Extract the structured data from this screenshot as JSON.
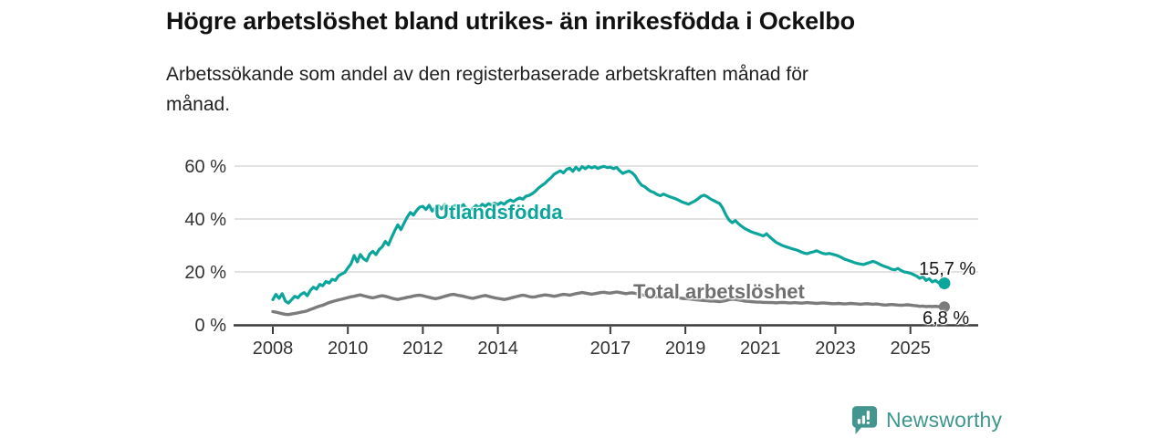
{
  "header": {
    "title": "Högre arbetslöshet bland utrikes- än inrikesfödda i Ockelbo",
    "subtitle_line1": "Arbetssökande som andel av den registerbaserade arbetskraften månad för",
    "subtitle_line2": "månad."
  },
  "branding": {
    "name": "Newsworthy",
    "icon": "speech-bubble-bar-chart",
    "color": "#43968f"
  },
  "chart_data": {
    "type": "line",
    "title": "Högre arbetslöshet bland utrikes- än inrikesfödda i Ockelbo",
    "subtitle": "Arbetssökande som andel av den registerbaserade arbetskraften månad för månad.",
    "x_unit": "month",
    "x_start": "2008-01",
    "x_end": "2025-11",
    "xlabel": "",
    "ylabel": "",
    "ylim": [
      0,
      62
    ],
    "grid": "horizontal",
    "legend_position": "inline-labels",
    "y_tick_values": [
      0,
      20,
      40,
      60
    ],
    "y_tick_labels": [
      "0 %",
      "20 %",
      "40 %",
      "60 %"
    ],
    "x_tick_years": [
      2008,
      2010,
      2012,
      2014,
      2017,
      2019,
      2021,
      2023,
      2025
    ],
    "colors": {
      "grid": "#d9d9d9",
      "axis": "#3b3b3b",
      "tick_text": "#333333"
    },
    "series": [
      {
        "name": "Utlandsfödda",
        "color": "#0ba59c",
        "line_width": 3.2,
        "end_label": "15,7 %",
        "end_value": 15.7,
        "values": [
          9.5,
          11.5,
          10,
          11.8,
          9,
          8.2,
          9.5,
          10.8,
          10.2,
          11.5,
          12.2,
          11,
          13,
          14.2,
          13.5,
          15.3,
          14.8,
          16.4,
          15.8,
          17.2,
          16.8,
          18.5,
          19.2,
          19.8,
          21.5,
          23,
          26.2,
          23.8,
          26.6,
          25,
          24.2,
          26.8,
          27.8,
          26.5,
          28.4,
          29.5,
          31.5,
          30.2,
          33,
          35.6,
          37.8,
          36,
          38.5,
          40.7,
          42.5,
          41.5,
          43.2,
          44.5,
          44.8,
          43.6,
          45.2,
          43,
          44.1,
          45,
          43.8,
          45.5,
          44.6,
          43.8,
          44.9,
          45.3,
          44.6,
          45.4,
          43.8,
          42.9,
          44,
          45.1,
          44.3,
          45.6,
          44.8,
          45.8,
          45.2,
          46,
          45.4,
          46.2,
          45.6,
          46.6,
          47.2,
          46.6,
          47.4,
          48,
          47.5,
          48.6,
          48.9,
          49.6,
          50.5,
          51.7,
          52.6,
          53.4,
          54.6,
          55.6,
          56.9,
          57.6,
          58.2,
          57.4,
          58.8,
          59.2,
          58,
          59.6,
          58.4,
          59.8,
          59,
          59.9,
          59.3,
          59.8,
          59.1,
          59.6,
          59.9,
          59.4,
          59.6,
          59,
          59.5,
          58.2,
          57.2,
          57.8,
          58.1,
          57.4,
          56.2,
          54.2,
          52.8,
          52.2,
          51.2,
          50.4,
          50,
          49.2,
          48.8,
          49.4,
          48.9,
          48.4,
          48,
          47.6,
          47,
          46.4,
          46,
          45.6,
          46.2,
          46.8,
          47.6,
          48.6,
          49,
          48.4,
          47.6,
          47,
          46.4,
          45.8,
          44,
          41.5,
          39.6,
          38.6,
          39.4,
          38.2,
          37.2,
          36.4,
          35.8,
          35.2,
          34.8,
          34.4,
          34,
          33.6,
          34.4,
          33.2,
          32.2,
          31.2,
          30.6,
          30,
          29.6,
          29.2,
          28.8,
          28.5,
          28.1,
          27.6,
          27.1,
          26.9,
          27.3,
          27.6,
          28,
          27.5,
          27,
          26.8,
          27,
          26.7,
          26.4,
          26,
          25.4,
          24.8,
          24.4,
          24,
          23.6,
          23.2,
          23,
          22.8,
          23.2,
          23.6,
          24,
          23.6,
          23,
          22.4,
          22,
          21.6,
          21,
          20.8,
          21.3,
          20.6,
          20,
          19.8,
          19.5,
          19,
          18.4,
          17.6,
          18.2,
          16.8,
          17.4,
          16.2,
          16.8,
          15.9,
          15.7
        ]
      },
      {
        "name": "Total arbetslöshet",
        "color": "#7b7b7b",
        "line_width": 3.4,
        "end_label": "6,8 %",
        "end_value": 6.8,
        "values": [
          5,
          4.8,
          4.5,
          4.2,
          4,
          3.9,
          4.1,
          4.3,
          4.5,
          4.8,
          5,
          5.3,
          5.8,
          6.2,
          6.7,
          7.1,
          7.4,
          7.9,
          8.4,
          8.8,
          9.1,
          9.4,
          9.7,
          10,
          10.3,
          10.6,
          10.8,
          11.1,
          11.3,
          11,
          10.7,
          10.4,
          10.2,
          10.5,
          10.8,
          11,
          10.8,
          10.5,
          10.1,
          9.8,
          9.6,
          9.9,
          10.1,
          10.4,
          10.6,
          10.9,
          11.1,
          11.2,
          11,
          10.7,
          10.4,
          10.1,
          9.9,
          10.1,
          10.4,
          10.8,
          11.1,
          11.4,
          11.5,
          11.2,
          11,
          10.8,
          10.5,
          10.2,
          10,
          10.3,
          10.6,
          10.9,
          11.1,
          10.8,
          10.5,
          10.2,
          10,
          9.8,
          9.6,
          9.8,
          10.1,
          10.4,
          10.7,
          11,
          11.2,
          11,
          10.7,
          10.5,
          10.6,
          10.9,
          11.1,
          11.3,
          11.2,
          11,
          10.8,
          11,
          11.3,
          11.5,
          11.4,
          11.2,
          11.5,
          11.8,
          12,
          12.2,
          12,
          11.8,
          11.6,
          11.8,
          12,
          12.2,
          12.3,
          12.1,
          12,
          12.2,
          12.4,
          12.2,
          12,
          11.8,
          12,
          12.1,
          11.9,
          11.6,
          11.4,
          11.2,
          11,
          10.8,
          10.6,
          10.7,
          10.9,
          11,
          10.9,
          10.7,
          10.5,
          10.3,
          10.2,
          10,
          9.9,
          9.8,
          9.7,
          9.5,
          9.4,
          9.3,
          9.2,
          9.1,
          9,
          9,
          8.9,
          8.8,
          9,
          9.2,
          9.5,
          9.7,
          9.6,
          9.4,
          9.2,
          9,
          8.9,
          8.8,
          8.7,
          8.6,
          8.6,
          8.5,
          8.5,
          8.4,
          8.4,
          8.3,
          8.4,
          8.5,
          8.4,
          8.3,
          8.3,
          8.4,
          8.3,
          8.2,
          8.3,
          8.4,
          8.3,
          8.2,
          8.1,
          8.2,
          8.3,
          8.2,
          8.1,
          8,
          8,
          8.1,
          8,
          7.9,
          8,
          8.1,
          8,
          7.9,
          7.8,
          7.9,
          8,
          7.9,
          7.8,
          7.9,
          7.8,
          7.6,
          7.5,
          7.6,
          7.7,
          7.6,
          7.5,
          7.4,
          7.5,
          7.6,
          7.5,
          7.3,
          7.2,
          7,
          7.1,
          6.9,
          7,
          6.9,
          7,
          6.9,
          6.8
        ]
      }
    ]
  }
}
